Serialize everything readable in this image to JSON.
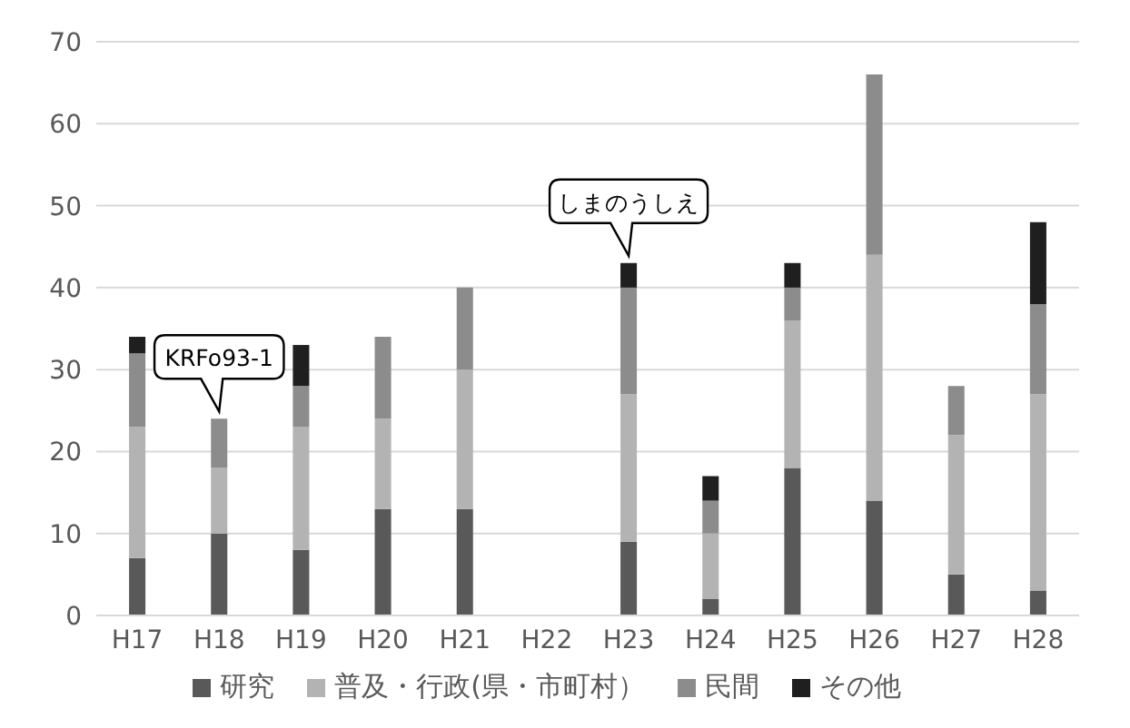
{
  "chart_data": {
    "type": "bar",
    "stacked": true,
    "categories": [
      "H17",
      "H18",
      "H19",
      "H20",
      "H21",
      "H22",
      "H23",
      "H24",
      "H25",
      "H26",
      "H27",
      "H28"
    ],
    "series": [
      {
        "name": "研究",
        "color": "#595959",
        "values": [
          7,
          10,
          8,
          13,
          13,
          null,
          9,
          2,
          18,
          14,
          5,
          3
        ]
      },
      {
        "name": "普及・行政(県・市町村）",
        "color": "#b3b3b3",
        "values": [
          16,
          8,
          15,
          11,
          17,
          null,
          18,
          8,
          18,
          30,
          17,
          24
        ]
      },
      {
        "name": "民間",
        "color": "#8c8c8c",
        "values": [
          9,
          6,
          5,
          10,
          10,
          null,
          13,
          4,
          4,
          22,
          6,
          11
        ]
      },
      {
        "name": "その他",
        "color": "#1f1f1f",
        "values": [
          2,
          0,
          5,
          0,
          0,
          null,
          3,
          3,
          3,
          0,
          0,
          10
        ]
      }
    ],
    "ylim": [
      0,
      70
    ],
    "yticks": [
      0,
      10,
      20,
      30,
      40,
      50,
      60,
      70
    ],
    "grid": "y",
    "legend": "bottom",
    "annotations": [
      {
        "text": "KRFo93-1",
        "x": "H18",
        "y": 24
      },
      {
        "text": "しまのうしえ",
        "x": "H23",
        "y": 43
      }
    ]
  }
}
